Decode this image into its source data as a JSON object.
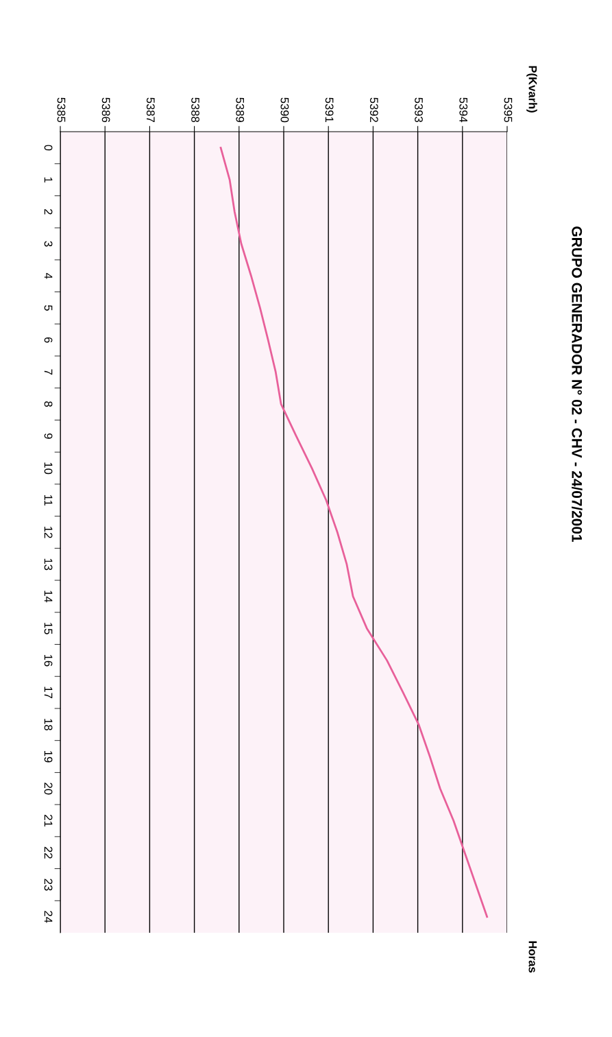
{
  "chart_data": {
    "type": "line",
    "orientation": "horizontal",
    "title": "GRUPO GENERADOR N° 02 - CHV - 24/07/2001",
    "ylabel": "P(Kvarh)",
    "annotations": [
      "Horas"
    ],
    "categories": [
      "0",
      "1",
      "2",
      "3",
      "4",
      "5",
      "6",
      "7",
      "8",
      "9",
      "10",
      "11",
      "12",
      "13",
      "14",
      "15",
      "16",
      "17",
      "18",
      "19",
      "20",
      "21",
      "22",
      "23",
      "24"
    ],
    "series": [
      {
        "color": "#e8609a",
        "values": [
          5388.59,
          5388.79,
          5388.9,
          5389.05,
          5389.27,
          5389.47,
          5389.65,
          5389.82,
          5389.94,
          5390.28,
          5390.63,
          5390.95,
          5391.2,
          5391.41,
          5391.55,
          5391.86,
          5392.31,
          5392.67,
          5393.02,
          5393.27,
          5393.5,
          5393.8,
          5394.05,
          5394.3,
          5394.55
        ]
      }
    ],
    "xlim": [
      5385,
      5395
    ],
    "xticks": [
      5385,
      5386,
      5387,
      5388,
      5389,
      5390,
      5391,
      5392,
      5393,
      5394,
      5395
    ],
    "grid": "x",
    "marker": "none",
    "line_style": "solid"
  }
}
